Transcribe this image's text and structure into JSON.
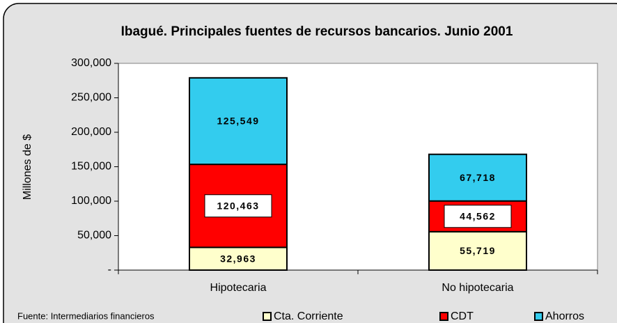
{
  "chart_data": {
    "type": "stacked_bar",
    "title": "Ibagué. Principales fuentes de recursos bancarios. Junio 2001",
    "y_label": "Millones de $",
    "source": "Fuente: Intermediarios financieros",
    "categories": [
      "Hipotecaria",
      "No hipotecaria"
    ],
    "series": [
      {
        "name": "Cta. Corriente",
        "color": "#ffffcc",
        "values": [
          32963,
          55719
        ],
        "value_labels": [
          "32,963",
          "55,719"
        ]
      },
      {
        "name": "CDT",
        "color": "#ff0000",
        "values": [
          120463,
          44562
        ],
        "value_labels": [
          "120,463",
          "44,562"
        ]
      },
      {
        "name": "Ahorros",
        "color": "#33ccee",
        "values": [
          125549,
          67718
        ],
        "value_labels": [
          "125,549",
          "67,718"
        ]
      }
    ],
    "ylim": [
      0,
      300000
    ],
    "yticks": [
      {
        "value": 0,
        "label": "-"
      },
      {
        "value": 50000,
        "label": "50,000"
      },
      {
        "value": 100000,
        "label": "100,000"
      },
      {
        "value": 150000,
        "label": "150,000"
      },
      {
        "value": 200000,
        "label": "200,000"
      },
      {
        "value": 250000,
        "label": "250,000"
      },
      {
        "value": 300000,
        "label": "300,000"
      }
    ],
    "legend": "bottom"
  }
}
